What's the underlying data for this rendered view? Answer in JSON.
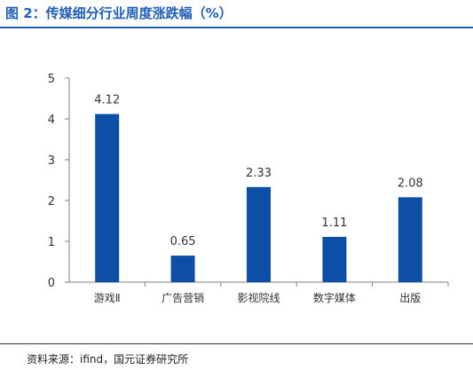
{
  "figure": {
    "title": "图 2：传媒细分行业周度涨跌幅（%）",
    "source": "资料来源：ifind，国元证券研究所"
  },
  "colors": {
    "accent": "#1f5fb5",
    "bar": "#0d4ea6"
  },
  "chart_data": {
    "type": "bar",
    "title": "",
    "xlabel": "",
    "ylabel": "",
    "categories": [
      "游戏Ⅱ",
      "广告营销",
      "影视院线",
      "数字媒体",
      "出版"
    ],
    "values": [
      4.12,
      0.65,
      2.33,
      1.11,
      2.08
    ],
    "value_labels": [
      "4.12",
      "0.65",
      "2.33",
      "1.11",
      "2.08"
    ],
    "ylim": [
      0,
      5
    ],
    "yticks": [
      0,
      1,
      2,
      3,
      4,
      5
    ],
    "grid": false,
    "legend": "none"
  }
}
